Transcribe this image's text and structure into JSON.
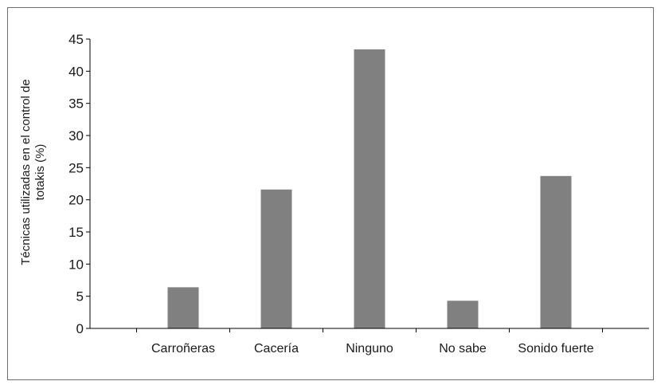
{
  "chart_data": {
    "type": "bar",
    "title": "",
    "xlabel": "",
    "ylabel_lines": [
      "Técnicas utilizadas en el control de",
      "totakis (%)"
    ],
    "categories": [
      "Carroñeras",
      "Cacería",
      "Ninguno",
      "No sabe",
      "Sonido fuerte"
    ],
    "values": [
      6.4,
      21.6,
      43.4,
      4.3,
      23.7
    ],
    "ylim": [
      0,
      45
    ],
    "yticks": [
      0,
      5,
      10,
      15,
      20,
      25,
      30,
      35,
      40,
      45
    ],
    "grid": false,
    "bar_color": "#808080"
  }
}
